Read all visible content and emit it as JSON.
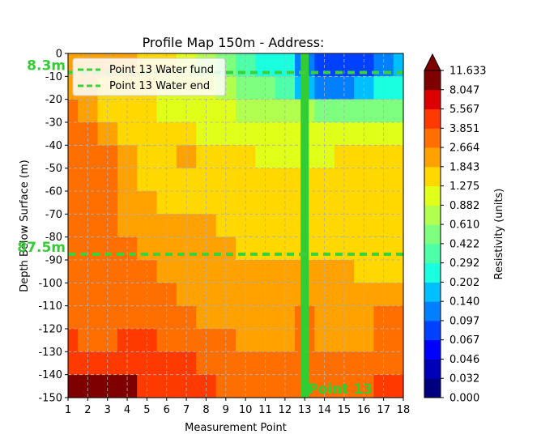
{
  "chart_data": {
    "type": "heatmap",
    "title": "Profile Map 150m - Address:",
    "xlabel": "Measurement Point",
    "ylabel": "Depth Below Surface (m)",
    "colorbar_label": "Resistivity (units)",
    "xlim": [
      1,
      18
    ],
    "ylim": [
      -150,
      0
    ],
    "x_ticks": [
      "1",
      "2",
      "3",
      "4",
      "5",
      "6",
      "7",
      "8",
      "9",
      "10",
      "11",
      "12",
      "13",
      "14",
      "15",
      "16",
      "17",
      "18"
    ],
    "y_ticks": [
      "0",
      "-10",
      "-20",
      "-30",
      "-40",
      "-50",
      "-60",
      "-70",
      "-80",
      "-90",
      "-100",
      "-110",
      "-120",
      "-130",
      "-140",
      "-150"
    ],
    "grid": true,
    "colorbar_levels": [
      "0.000",
      "0.032",
      "0.046",
      "0.067",
      "0.097",
      "0.140",
      "0.202",
      "0.292",
      "0.422",
      "0.610",
      "0.882",
      "1.275",
      "1.843",
      "2.664",
      "3.851",
      "5.567",
      "8.047",
      "11.633"
    ],
    "colorbar_colors": [
      "#00007f",
      "#0000b8",
      "#0000ff",
      "#0040ff",
      "#007fff",
      "#00bfff",
      "#19ffe0",
      "#4effa9",
      "#7fff7f",
      "#b1ff4e",
      "#e0ff19",
      "#ffd800",
      "#ffa200",
      "#ff6f00",
      "#ff3a00",
      "#dd0000",
      "#7f0000"
    ],
    "depth_rows": [
      -5,
      -15,
      -25,
      -35,
      -45,
      -55,
      -65,
      -75,
      -85,
      -95,
      -105,
      -115,
      -125,
      -135,
      -145
    ],
    "grid_values": [
      [
        12,
        12,
        12,
        12,
        11,
        11,
        10,
        9,
        8,
        7,
        6,
        6,
        4,
        3,
        3,
        3,
        4,
        5
      ],
      [
        12,
        12,
        11,
        11,
        11,
        10,
        10,
        10,
        9,
        8,
        8,
        7,
        5,
        4,
        4,
        5,
        6,
        6
      ],
      [
        13,
        12,
        11,
        11,
        11,
        10,
        10,
        10,
        10,
        9,
        9,
        9,
        9,
        8,
        8,
        8,
        8,
        8
      ],
      [
        13,
        13,
        12,
        11,
        11,
        11,
        11,
        10,
        10,
        10,
        10,
        10,
        10,
        10,
        10,
        10,
        10,
        10
      ],
      [
        13,
        13,
        13,
        12,
        11,
        11,
        12,
        11,
        11,
        11,
        10,
        10,
        10,
        10,
        11,
        11,
        11,
        11
      ],
      [
        13,
        13,
        13,
        12,
        11,
        11,
        11,
        11,
        11,
        11,
        11,
        11,
        11,
        11,
        11,
        11,
        11,
        11
      ],
      [
        13,
        13,
        13,
        12,
        12,
        11,
        11,
        11,
        11,
        11,
        11,
        11,
        11,
        11,
        11,
        11,
        11,
        11
      ],
      [
        13,
        13,
        13,
        12,
        12,
        12,
        12,
        12,
        11,
        11,
        11,
        11,
        11,
        11,
        11,
        11,
        11,
        11
      ],
      [
        13,
        13,
        13,
        13,
        12,
        12,
        12,
        12,
        12,
        11,
        11,
        11,
        11,
        11,
        11,
        11,
        11,
        11
      ],
      [
        13,
        13,
        13,
        13,
        13,
        12,
        12,
        12,
        12,
        12,
        12,
        12,
        12,
        12,
        12,
        11,
        11,
        11
      ],
      [
        13,
        13,
        13,
        13,
        13,
        13,
        12,
        12,
        12,
        12,
        12,
        12,
        12,
        12,
        12,
        12,
        12,
        12
      ],
      [
        13,
        13,
        13,
        13,
        13,
        13,
        13,
        12,
        12,
        12,
        12,
        12,
        13,
        12,
        12,
        12,
        13,
        13
      ],
      [
        14,
        13,
        13,
        14,
        14,
        13,
        13,
        13,
        13,
        12,
        12,
        12,
        13,
        12,
        12,
        12,
        13,
        13
      ],
      [
        14,
        14,
        14,
        14,
        14,
        14,
        14,
        13,
        13,
        13,
        13,
        13,
        13,
        13,
        13,
        13,
        13,
        13
      ],
      [
        16,
        16,
        16,
        16,
        14,
        14,
        14,
        14,
        13,
        13,
        13,
        13,
        13,
        13,
        13,
        13,
        14,
        14
      ]
    ],
    "vertical_line": {
      "x": 13,
      "color": "#32cd32",
      "label": "Point 13"
    },
    "horizontal_lines": [
      {
        "y": -8.3,
        "label": "8.3m",
        "color": "#3ad13a"
      },
      {
        "y": -87.5,
        "label": "87.5m",
        "color": "#3ad13a"
      }
    ],
    "legend": {
      "position": "upper-left",
      "entries": [
        "Point 13 Water fund",
        "Point 13 Water end"
      ]
    }
  }
}
